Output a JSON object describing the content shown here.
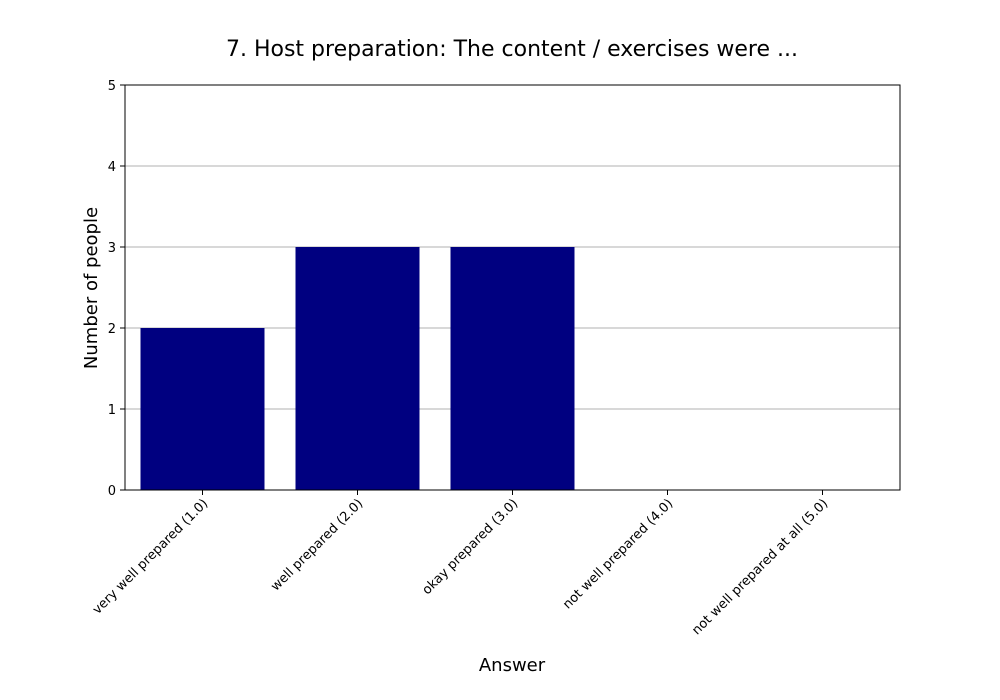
{
  "chart_data": {
    "type": "bar",
    "title": "7. Host preparation: The content / exercises were ...",
    "xlabel": "Answer",
    "ylabel": "Number of people",
    "categories": [
      "very well prepared (1.0)",
      "well prepared (2.0)",
      "okay prepared (3.0)",
      "not well prepared (4.0)",
      "not well prepared at all (5.0)"
    ],
    "values": [
      2,
      3,
      3,
      0,
      0
    ],
    "ylim": [
      0,
      5
    ],
    "yticks": [
      0,
      1,
      2,
      3,
      4,
      5
    ],
    "grid": "y",
    "bar_color": "#000080"
  }
}
